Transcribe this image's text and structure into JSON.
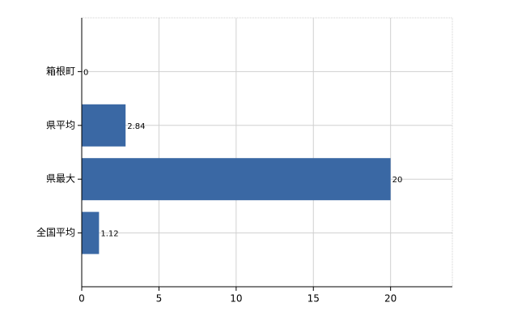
{
  "chart_data": {
    "type": "hbar",
    "categories": [
      "箱根町",
      "県平均",
      "県最大",
      "全国平均"
    ],
    "values": [
      0,
      2.84,
      20,
      1.12
    ],
    "color": "#3a68a4",
    "xlim": [
      0,
      24
    ],
    "xticks": [
      0,
      5,
      10,
      15,
      20
    ],
    "grid": true
  }
}
